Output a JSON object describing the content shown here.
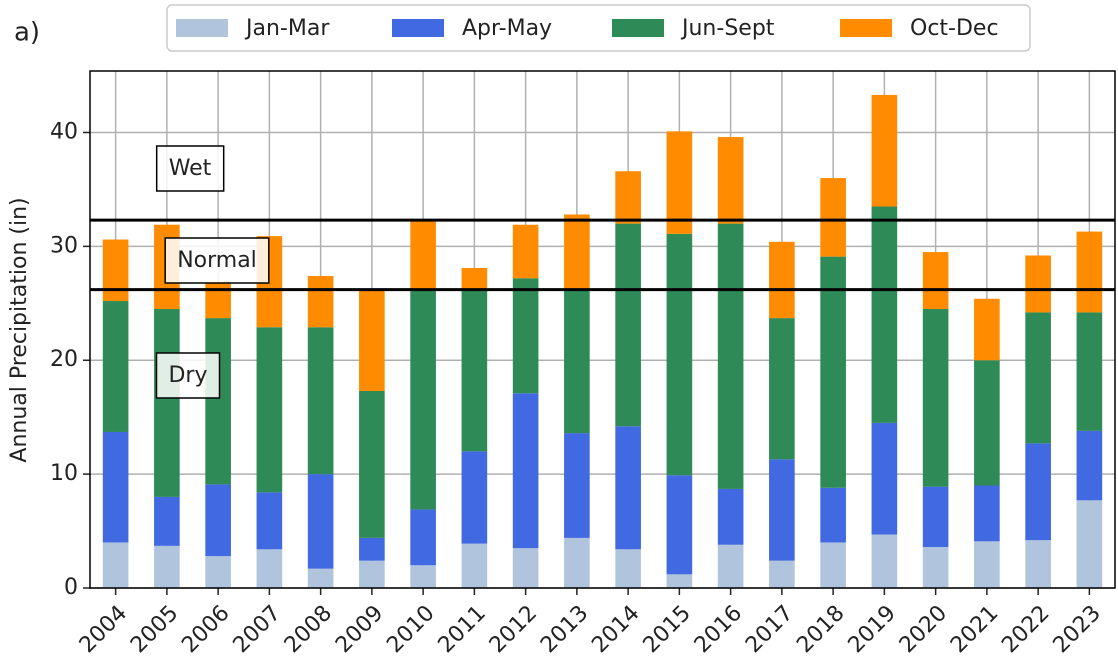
{
  "chart_data": {
    "type": "stacked_bar",
    "panel_label": "a)",
    "ylabel": "Annual Precipitation (in)",
    "categories": [
      "2004",
      "2005",
      "2006",
      "2007",
      "2008",
      "2009",
      "2010",
      "2011",
      "2012",
      "2013",
      "2014",
      "2015",
      "2016",
      "2017",
      "2018",
      "2019",
      "2020",
      "2021",
      "2022",
      "2023"
    ],
    "series": [
      {
        "name": "Jan-Mar",
        "color": "#b0c4de",
        "values": [
          4.0,
          3.7,
          2.8,
          3.4,
          1.7,
          2.4,
          2.0,
          3.9,
          3.5,
          4.4,
          3.4,
          1.2,
          3.8,
          2.4,
          4.0,
          4.7,
          3.6,
          4.1,
          4.2,
          7.7
        ]
      },
      {
        "name": "Apr-May",
        "color": "#4169e1",
        "values": [
          9.7,
          4.3,
          6.3,
          5.0,
          8.3,
          2.0,
          4.9,
          8.1,
          13.6,
          9.2,
          10.8,
          8.7,
          4.9,
          8.9,
          4.8,
          9.8,
          5.3,
          4.9,
          8.5,
          6.1
        ]
      },
      {
        "name": "Jun-Sept",
        "color": "#2e8b57",
        "values": [
          11.5,
          16.5,
          14.6,
          14.5,
          12.9,
          12.9,
          19.3,
          14.2,
          10.1,
          12.6,
          17.8,
          21.2,
          23.3,
          12.4,
          20.3,
          19.0,
          15.6,
          11.0,
          11.5,
          10.4
        ]
      },
      {
        "name": "Oct-Dec",
        "color": "#ff8c00",
        "values": [
          5.4,
          7.4,
          3.2,
          8.0,
          4.5,
          8.9,
          6.0,
          1.9,
          4.7,
          6.6,
          4.6,
          9.0,
          7.6,
          6.7,
          6.9,
          9.8,
          5.0,
          5.4,
          5.0,
          7.1
        ]
      }
    ],
    "hlines": [
      32.3,
      26.2
    ],
    "annotations": [
      "Wet",
      "Normal",
      "Dry"
    ],
    "ylim": [
      0,
      45.4
    ],
    "yticks": [
      0,
      10,
      20,
      30,
      40
    ],
    "grid": true,
    "legend": "top"
  }
}
